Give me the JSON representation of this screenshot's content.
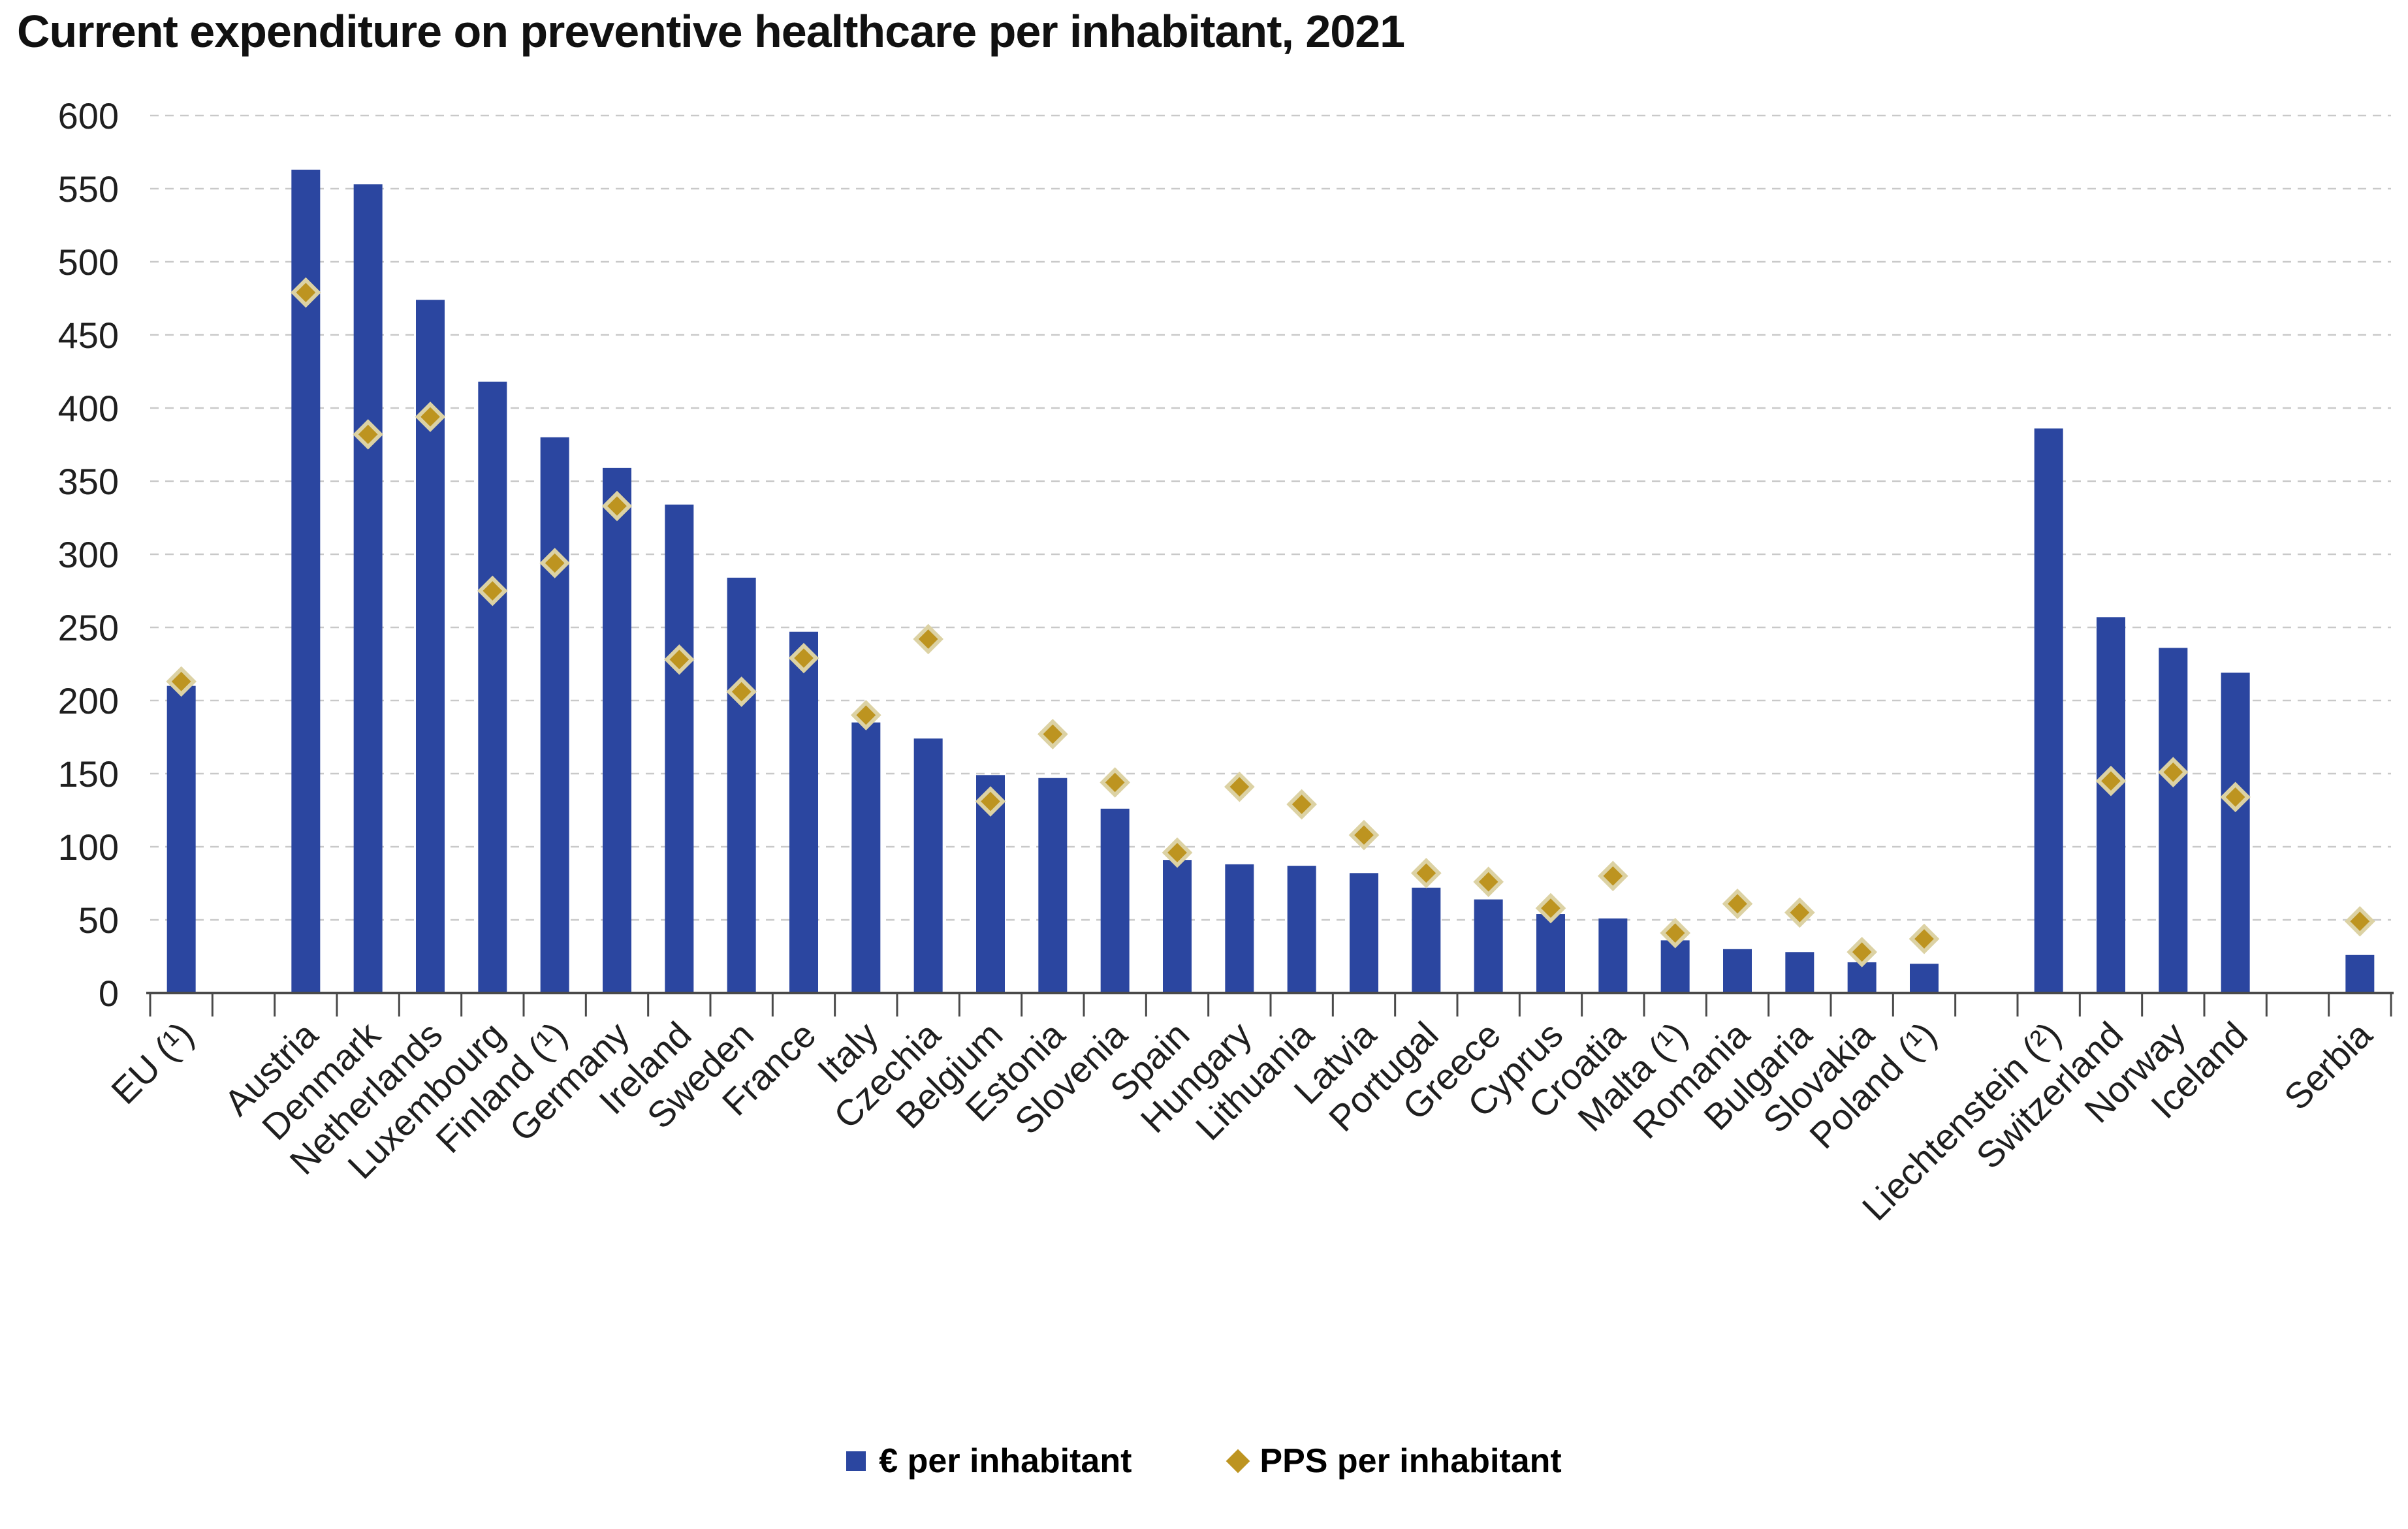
{
  "title": "Current expenditure on preventive healthcare per inhabitant, 2021",
  "legend": {
    "eur_label": "€ per inhabitant",
    "pps_label": "PPS per inhabitant"
  },
  "colors": {
    "bar": "#2B46A0",
    "diamond": "#BD9420",
    "diamond_outline": "#DCD2A4",
    "grid": "#C9C9C9",
    "axis": "#4A4A4A",
    "tick_text": "#1F1F1F"
  },
  "chart_data": {
    "type": "bar",
    "title": "Current expenditure on preventive healthcare per inhabitant, 2021",
    "xlabel": "",
    "ylabel": "",
    "ylim": [
      0,
      600
    ],
    "ytick_step": 50,
    "grid": "horizontal-dashed",
    "legend_position": "bottom-center",
    "series_meta": [
      {
        "name": "€ per inhabitant",
        "type": "bar",
        "color": "#2B46A0"
      },
      {
        "name": "PPS per inhabitant",
        "type": "scatter-diamond",
        "color": "#BD9420"
      }
    ],
    "groups": [
      {
        "name": "eu-aggregate",
        "items": [
          {
            "label": "EU (¹)",
            "eur": 210,
            "pps": 213
          }
        ]
      },
      {
        "name": "eu-member-states",
        "items": [
          {
            "label": "Austria",
            "eur": 563,
            "pps": 479
          },
          {
            "label": "Denmark",
            "eur": 553,
            "pps": 382
          },
          {
            "label": "Netherlands",
            "eur": 474,
            "pps": 394
          },
          {
            "label": "Luxembourg",
            "eur": 418,
            "pps": 275
          },
          {
            "label": "Finland (¹)",
            "eur": 380,
            "pps": 294
          },
          {
            "label": "Germany",
            "eur": 359,
            "pps": 333
          },
          {
            "label": "Ireland",
            "eur": 334,
            "pps": 228
          },
          {
            "label": "Sweden",
            "eur": 284,
            "pps": 206
          },
          {
            "label": "France",
            "eur": 247,
            "pps": 229
          },
          {
            "label": "Italy",
            "eur": 185,
            "pps": 190
          },
          {
            "label": "Czechia",
            "eur": 174,
            "pps": 242
          },
          {
            "label": "Belgium",
            "eur": 149,
            "pps": 131
          },
          {
            "label": "Estonia",
            "eur": 147,
            "pps": 177
          },
          {
            "label": "Slovenia",
            "eur": 126,
            "pps": 144
          },
          {
            "label": "Spain",
            "eur": 91,
            "pps": 96
          },
          {
            "label": "Hungary",
            "eur": 88,
            "pps": 141
          },
          {
            "label": "Lithuania",
            "eur": 87,
            "pps": 129
          },
          {
            "label": "Latvia",
            "eur": 82,
            "pps": 108
          },
          {
            "label": "Portugal",
            "eur": 72,
            "pps": 82
          },
          {
            "label": "Greece",
            "eur": 64,
            "pps": 76
          },
          {
            "label": "Cyprus",
            "eur": 54,
            "pps": 58
          },
          {
            "label": "Croatia",
            "eur": 51,
            "pps": 80
          },
          {
            "label": "Malta (¹)",
            "eur": 36,
            "pps": 41
          },
          {
            "label": "Romania",
            "eur": 30,
            "pps": 61
          },
          {
            "label": "Bulgaria",
            "eur": 28,
            "pps": 55
          },
          {
            "label": "Slovakia",
            "eur": 21,
            "pps": 28
          },
          {
            "label": "Poland (¹)",
            "eur": 20,
            "pps": 37
          }
        ]
      },
      {
        "name": "efta-countries",
        "items": [
          {
            "label": "Liechtenstein (²)",
            "eur": 386,
            "pps": null
          },
          {
            "label": "Switzerland",
            "eur": 257,
            "pps": 145
          },
          {
            "label": "Norway",
            "eur": 236,
            "pps": 151
          },
          {
            "label": "Iceland",
            "eur": 219,
            "pps": 134
          }
        ]
      },
      {
        "name": "candidate-countries",
        "items": [
          {
            "label": "Serbia",
            "eur": 26,
            "pps": 49
          }
        ]
      }
    ]
  }
}
